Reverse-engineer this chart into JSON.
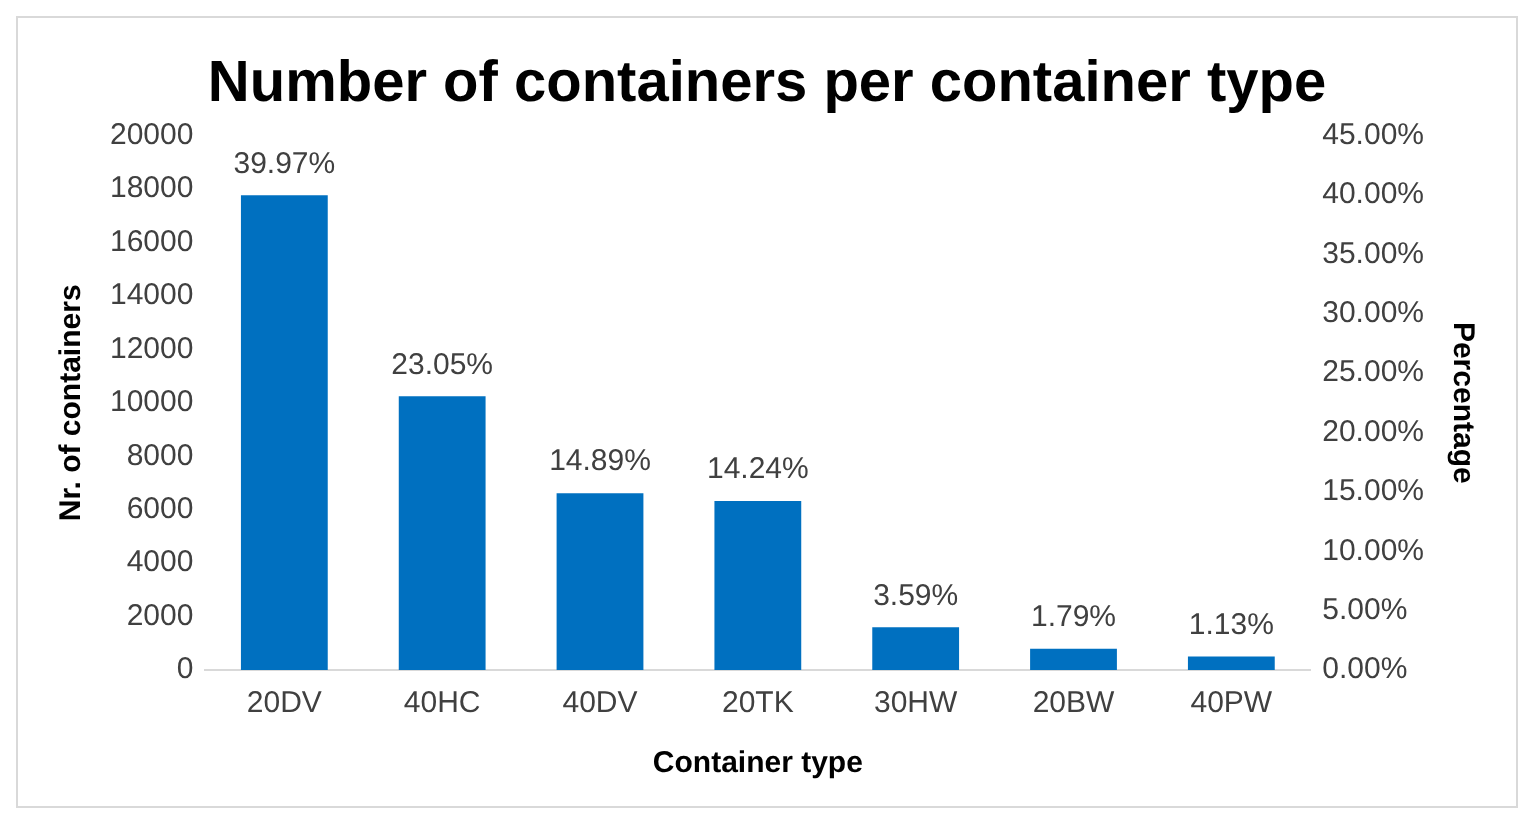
{
  "chart_data": {
    "type": "bar",
    "title": "Number of containers per container type",
    "xlabel": "Container type",
    "ylabel": "Nr. of containers",
    "y2label": "Percentage",
    "categories": [
      "20DV",
      "40HC",
      "40DV",
      "20TK",
      "30HW",
      "20BW",
      "40PW"
    ],
    "series": [
      {
        "color": "#0070c0",
        "axis": "y2",
        "values": [
          39.97,
          23.05,
          14.89,
          14.24,
          3.59,
          1.79,
          1.13
        ],
        "value_labels": [
          "39.97%",
          "23.05%",
          "14.89%",
          "14.24%",
          "3.59%",
          "1.79%",
          "1.13%"
        ]
      }
    ],
    "ylim": [
      0,
      20000
    ],
    "yticks": [
      0,
      2000,
      4000,
      6000,
      8000,
      10000,
      12000,
      14000,
      16000,
      18000,
      20000
    ],
    "y2lim": [
      0,
      45
    ],
    "y2ticks": [
      {
        "value": 0,
        "label": "0.00%"
      },
      {
        "value": 5,
        "label": "5.00%"
      },
      {
        "value": 10,
        "label": "10.00%"
      },
      {
        "value": 15,
        "label": "15.00%"
      },
      {
        "value": 20,
        "label": "20.00%"
      },
      {
        "value": 25,
        "label": "25.00%"
      },
      {
        "value": 30,
        "label": "30.00%"
      },
      {
        "value": 35,
        "label": "35.00%"
      },
      {
        "value": 40,
        "label": "40.00%"
      },
      {
        "value": 45,
        "label": "45.00%"
      }
    ],
    "grid": false,
    "legend": false
  }
}
